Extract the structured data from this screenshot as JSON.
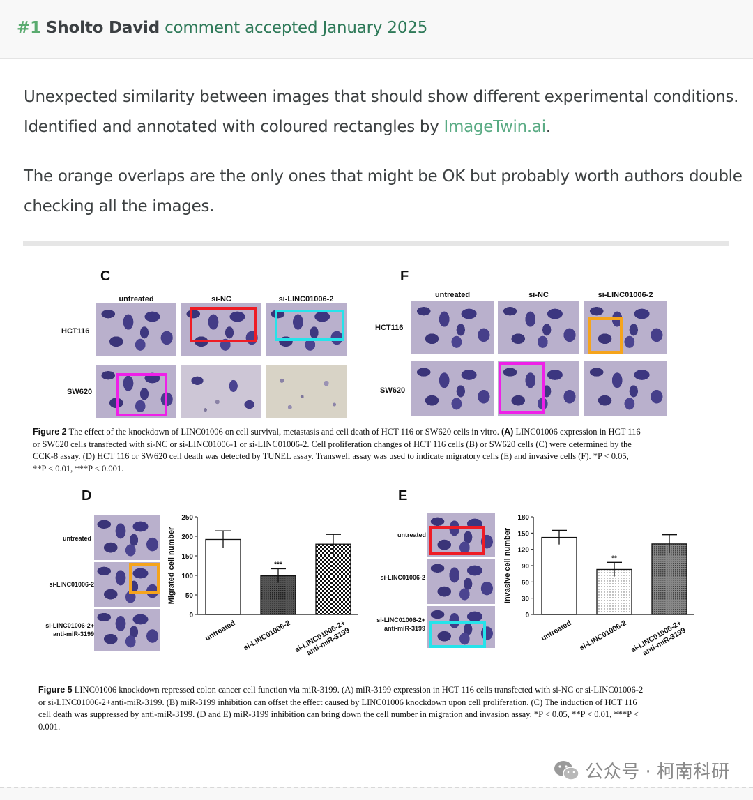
{
  "header": {
    "number": "#1",
    "author": "Sholto David",
    "meta": "comment accepted January 2025"
  },
  "body": {
    "para1_line1": "Unexpected similarity between images that should show different experimental conditions.",
    "para1_line2_prefix": "Identified and annotated with coloured rectangles by",
    "para1_link": "ImageTwin.ai",
    "para1_suffix": ".",
    "para2_line1": "The orange overlaps are the only ones that might be OK but probably worth authors double",
    "para2_line2": "checking all the images."
  },
  "figure2": {
    "panel_c": {
      "letter": "C",
      "columns": [
        "untreated",
        "si-NC",
        "si-LINC01006-2"
      ],
      "rows": [
        "HCT116",
        "SW620"
      ]
    },
    "panel_f": {
      "letter": "F",
      "columns": [
        "untreated",
        "si-NC",
        "si-LINC01006-2"
      ],
      "rows": [
        "HCT116",
        "SW620"
      ]
    },
    "caption_title": "Figure 2",
    "caption_l1": " The effect of the knockdown of LINC01006 on cell survival, metastasis and cell death of HCT 116 or SW620 cells in vitro. ",
    "caption_l1b": "(A)",
    "caption_l1c": " LINC01006 expression in HCT 116",
    "caption_l2": "or SW620 cells transfected with si-NC or si-LINC01006-1 or si-LINC01006-2. Cell proliferation changes of HCT 116 cells (B) or SW620 cells (C) were determined by the",
    "caption_l3": "CCK-8 assay. (D) HCT 116 or SW620 cell death was detected by TUNEL assay. Transwell assay was used to indicate migratory cells (E) and invasive cells (F). *P < 0.05,",
    "caption_l4": "**P < 0.01, ***P < 0.001."
  },
  "figure5": {
    "panel_d": {
      "letter": "D",
      "rows": [
        "untreated",
        "si-LINC01006-2",
        "si-LINC01006-2+",
        "anti-miR-3199"
      ]
    },
    "panel_e": {
      "letter": "E",
      "rows": [
        "untreated",
        "si-LINC01006-2",
        "si-LINC01006-2+",
        "anti-miR-3199"
      ]
    },
    "caption_title": "Figure 5",
    "caption_l1": " LINC01006 knockdown repressed colon cancer cell function via miR-3199. (A) miR-3199 expression in HCT 116 cells transfected with si-NC or si-LINC01006-2",
    "caption_l2": "or si-LINC01006-2+anti-miR-3199. (B) miR-3199 inhibition can offset the effect caused by LINC01006 knockdown upon cell proliferation. (C) The induction of HCT 116",
    "caption_l3": "cell death was suppressed by anti-miR-3199. (D and E) miR-3199 inhibition can bring down the cell number in migration and invasion assay. *P < 0.05, **P < 0.01, ***P <",
    "caption_l4": "0.001."
  },
  "chart_data": [
    {
      "type": "bar",
      "categories": [
        "untreated",
        "si-LINC01006-2",
        "si-LINC01006-2+ anti-miR-3199"
      ],
      "values": [
        192,
        99,
        180
      ],
      "errors": [
        22,
        18,
        25
      ],
      "significance": [
        "",
        "***",
        ""
      ],
      "ylabel": "Migrated cell number",
      "yticks": [
        "0",
        "50",
        "100",
        "150",
        "200",
        "250"
      ],
      "ylim": [
        0,
        250
      ]
    },
    {
      "type": "bar",
      "categories": [
        "untreated",
        "si-LINC01006-2",
        "si-LINC01006-2+ anti-miR-3199"
      ],
      "values": [
        142,
        83,
        130
      ],
      "errors": [
        13,
        13,
        17
      ],
      "significance": [
        "",
        "**",
        ""
      ],
      "ylabel": "Invasive cell number",
      "yticks": [
        "0",
        "30",
        "60",
        "90",
        "120",
        "150",
        "180"
      ],
      "ylim": [
        0,
        180
      ]
    }
  ],
  "watermark": {
    "text": "公众号 · 柯南科研",
    "icon": "wechat-icon"
  },
  "colors": {
    "accent_green": "#5aab6f",
    "link_green": "#5aab84",
    "highlight_red": "#ee1c25",
    "highlight_cyan": "#26e3ea",
    "highlight_magenta": "#ee20e8",
    "highlight_orange": "#f5a41c"
  }
}
